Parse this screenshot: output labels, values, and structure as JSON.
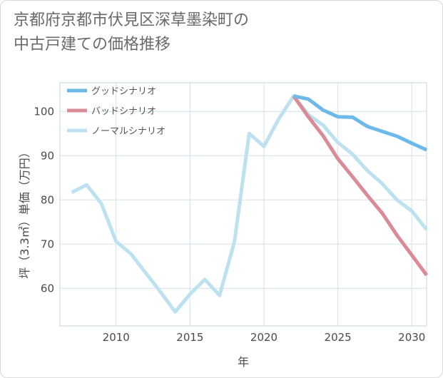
{
  "chart_data": {
    "type": "line",
    "title": "京都府京都市伏見区深草墨染町の中古戸建ての価格推移",
    "title_lines": [
      "京都府京都市伏見区深草墨染町の",
      "中古戸建ての価格推移"
    ],
    "xlabel": "年",
    "ylabel": "坪（3.3㎡）単価（万円）",
    "xlim": [
      2006.2,
      2031
    ],
    "ylim": [
      51.5,
      106.5
    ],
    "xticks": [
      2010,
      2015,
      2020,
      2025,
      2030
    ],
    "yticks": [
      60,
      70,
      80,
      90,
      100
    ],
    "grid": true,
    "legend_position": "top-left",
    "series": [
      {
        "name": "グッドシナリオ",
        "color": "#6cb9ea",
        "x": [
          2022,
          2023,
          2024,
          2025,
          2026,
          2027,
          2028,
          2029,
          2030,
          2031
        ],
        "values": [
          103.5,
          102.8,
          100.3,
          98.8,
          98.7,
          96.6,
          95.5,
          94.4,
          92.8,
          91.3
        ]
      },
      {
        "name": "バッドシナリオ",
        "color": "#d98c95",
        "x": [
          2022,
          2023,
          2024,
          2025,
          2026,
          2027,
          2028,
          2029,
          2030,
          2031
        ],
        "values": [
          103.5,
          98.8,
          94.5,
          89.3,
          85.2,
          81.0,
          77.0,
          72.0,
          67.5,
          63.0
        ]
      },
      {
        "name": "ノーマルシナリオ",
        "color": "#bde1ef",
        "x": [
          2007,
          2008,
          2009,
          2010,
          2011,
          2012,
          2013,
          2014,
          2015,
          2016,
          2017,
          2018,
          2019,
          2020,
          2021,
          2022,
          2023,
          2024,
          2025,
          2026,
          2027,
          2028,
          2029,
          2030,
          2031
        ],
        "values": [
          81.7,
          83.4,
          79.2,
          70.6,
          67.8,
          63.5,
          59.2,
          54.7,
          58.7,
          62.0,
          58.4,
          70.5,
          95.0,
          92.1,
          98.3,
          103.5,
          99.3,
          96.9,
          93.0,
          90.3,
          86.6,
          83.7,
          80.0,
          77.5,
          73.3
        ]
      }
    ]
  }
}
